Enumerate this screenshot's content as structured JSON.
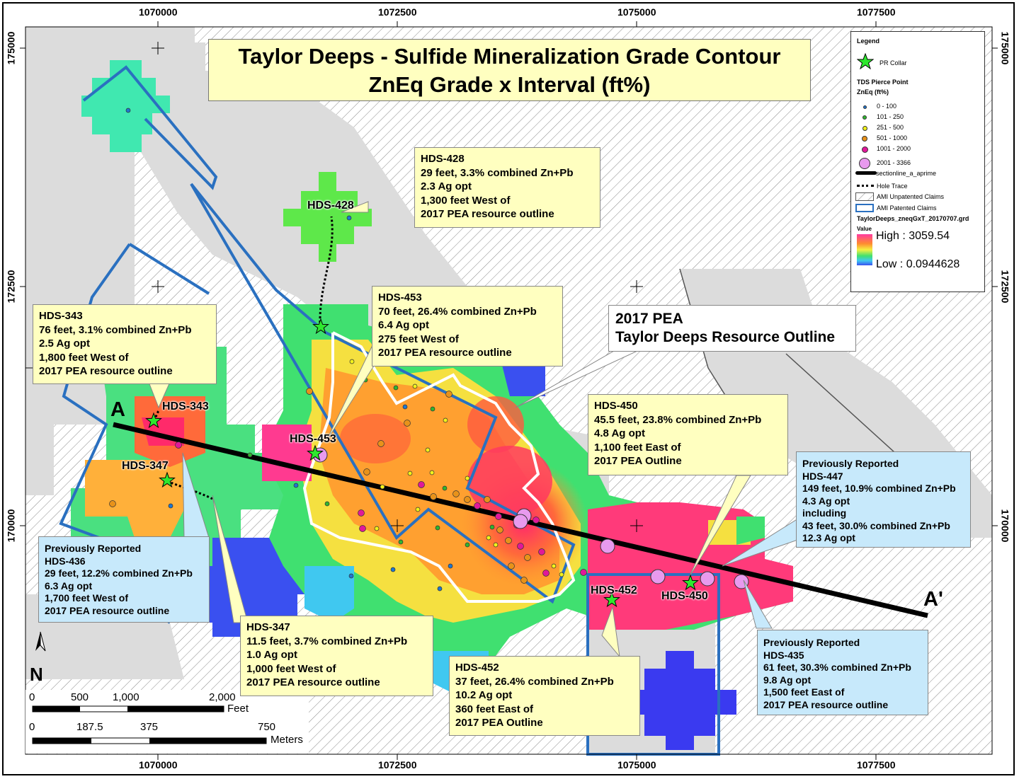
{
  "map": {
    "title_line1": "Taylor Deeps - Sulfide Mineralization Grade Contour",
    "title_line2": "ZnEq Grade x Interval (ft%)",
    "x_ticks": [
      "1070000",
      "1072500",
      "1075000",
      "1077500"
    ],
    "y_ticks": [
      "175000",
      "172500",
      "170000"
    ],
    "section_start": "A",
    "section_end": "A'"
  },
  "legend": {
    "title": "Legend",
    "collar": "PR Collar",
    "pierce_title": "TDS Pierce Point",
    "pierce_sub": "ZnEq (ft%)",
    "classes": [
      {
        "label": "0 - 100",
        "color": "#1f77d0"
      },
      {
        "label": "101 - 250",
        "color": "#2fb52f"
      },
      {
        "label": "251 - 500",
        "color": "#f2f21a"
      },
      {
        "label": "501 - 1000",
        "color": "#e8921a"
      },
      {
        "label": "1001 - 2000",
        "color": "#e0189a"
      },
      {
        "label": "2001 - 3366",
        "color": "#e89aee"
      }
    ],
    "section_line": "sectionline_a_aprime",
    "hole_trace": "Hole Trace",
    "unpatented": "AMI Unpatented Claims",
    "patented": "AMI Patented Claims",
    "grid_name": "TaylorDeeps_zneqGxT_20170707.grd",
    "value_label": "Value",
    "high": "High : 3059.54",
    "low": "Low : 0.0944628"
  },
  "scale": {
    "feet_ticks": [
      "0",
      "500",
      "1,000",
      "2,000"
    ],
    "feet_unit": "Feet",
    "meter_ticks": [
      "0",
      "187.5",
      "375",
      "750"
    ],
    "meter_unit": "Meters",
    "north": "N"
  },
  "pea_outline": {
    "line1": "2017 PEA",
    "line2": "Taylor Deeps Resource Outline"
  },
  "hole_labels": [
    "HDS-428",
    "HDS-343",
    "HDS-453",
    "HDS-347",
    "HDS-452",
    "HDS-450"
  ],
  "callouts": {
    "hds428": [
      "HDS-428",
      "29 feet, 3.3% combined Zn+Pb",
      "2.3 Ag opt",
      "1,300 feet West of",
      "2017 PEA resource outline"
    ],
    "hds453": [
      "HDS-453",
      "70 feet, 26.4% combined Zn+Pb",
      "6.4 Ag opt",
      "275 feet West of",
      "2017 PEA resource outline"
    ],
    "hds343": [
      "HDS-343",
      "76 feet, 3.1% combined Zn+Pb",
      "2.5 Ag opt",
      "1,800 feet West of",
      "2017 PEA resource outline"
    ],
    "hds450": [
      "HDS-450",
      "45.5 feet, 23.8% combined Zn+Pb",
      "4.8 Ag opt",
      "1,100 feet East of",
      "2017 PEA Outline"
    ],
    "hds447": [
      "Previously Reported",
      "HDS-447",
      "149 feet, 10.9% combined Zn+Pb",
      "4.3 Ag opt",
      "including",
      "43 feet, 30.0% combined Zn+Pb",
      "12.3 Ag opt"
    ],
    "hds436": [
      "Previously Reported",
      "HDS-436",
      "29 feet, 12.2% combined Zn+Pb",
      "6.3 Ag opt",
      "1,700 feet West of",
      "2017 PEA resource outline"
    ],
    "hds347": [
      "HDS-347",
      "11.5 feet, 3.7% combined Zn+Pb",
      "1.0 Ag opt",
      "1,000 feet West of",
      "2017 PEA resource outline"
    ],
    "hds452": [
      "HDS-452",
      "37 feet, 26.4% combined Zn+Pb",
      "10.2 Ag opt",
      "360 feet East of",
      "2017 PEA Outline"
    ],
    "hds435": [
      "Previously Reported",
      "HDS-435",
      "61 feet, 30.3% combined Zn+Pb",
      "9.8 Ag opt",
      "1,500 feet East of",
      "2017 PEA resource outline"
    ]
  }
}
